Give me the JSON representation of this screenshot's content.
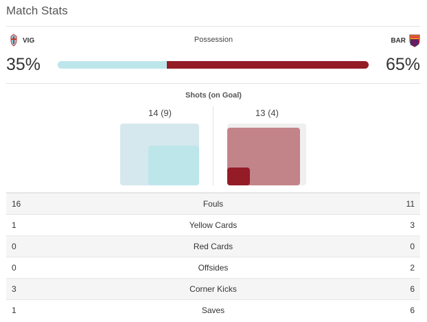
{
  "header": {
    "title": "Match Stats"
  },
  "teams": {
    "home": {
      "abbr": "VIG",
      "crest_icon": "celta-vigo-crest-icon"
    },
    "away": {
      "abbr": "BAR",
      "crest_icon": "barcelona-crest-icon"
    }
  },
  "possession": {
    "label": "Possession",
    "home_pct": "35%",
    "away_pct": "65%",
    "home_value": 35,
    "away_value": 65
  },
  "shots": {
    "label": "Shots (on Goal)",
    "home_text": "14 (9)",
    "away_text": "13 (4)",
    "home_total": 14,
    "home_on_goal": 9,
    "away_total": 13,
    "away_on_goal": 4
  },
  "stats": [
    {
      "home": "16",
      "label": "Fouls",
      "away": "11"
    },
    {
      "home": "1",
      "label": "Yellow Cards",
      "away": "3"
    },
    {
      "home": "0",
      "label": "Red Cards",
      "away": "0"
    },
    {
      "home": "0",
      "label": "Offsides",
      "away": "2"
    },
    {
      "home": "3",
      "label": "Corner Kicks",
      "away": "6"
    },
    {
      "home": "1",
      "label": "Saves",
      "away": "6"
    }
  ],
  "colors": {
    "home": "#bde6eb",
    "away": "#941c27",
    "away_light": "#c28489"
  }
}
